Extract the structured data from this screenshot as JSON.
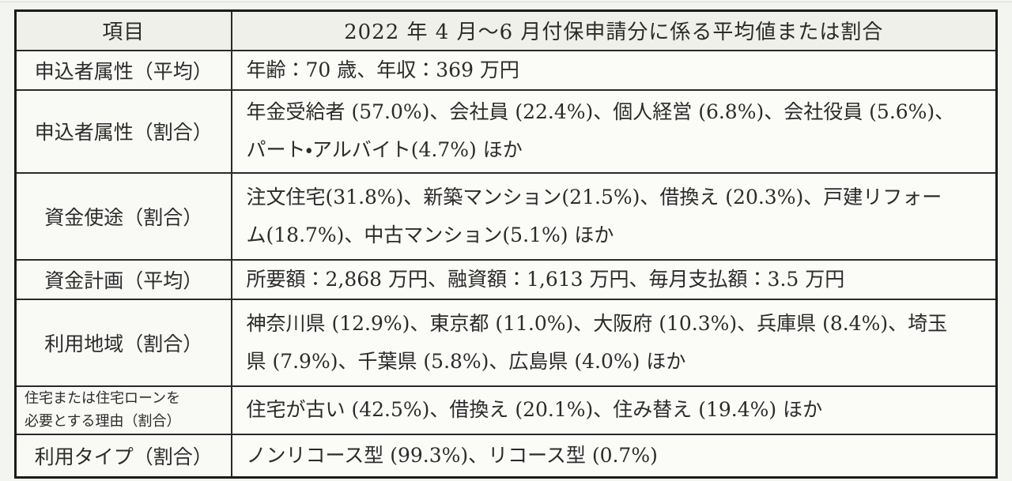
{
  "doc": {
    "header": {
      "item_label": "項目",
      "value_label": "2022 年 4 月～6 月付保申請分に係る平均値または割合"
    },
    "rows": [
      {
        "label": "申込者属性（平均）",
        "value": "年齢：70 歳、年収：369 万円"
      },
      {
        "label": "申込者属性（割合）",
        "value": "年金受給者 (57.0%)、会社員 (22.4%)、個人経営 (6.8%)、会社役員 (5.6%)、\nパート・アルバイト(4.7%) ほか"
      },
      {
        "label": "資金使途（割合）",
        "value": "注文住宅(31.8%)、新築マンション(21.5%)、借換え (20.3%)、戸建リフォー\nム(18.7%)、中古マンション(5.1%) ほか"
      },
      {
        "label": "資金計画（平均）",
        "value": "所要額：2,868 万円、融資額：1,613 万円、毎月支払額：3.5 万円"
      },
      {
        "label": "利用地域（割合）",
        "value": "神奈川県 (12.9%)、東京都 (11.0%)、大阪府 (10.3%)、兵庫県 (8.4%)、埼玉\n県 (7.9%)、千葉県 (5.8%)、広島県 (4.0%) ほか"
      },
      {
        "label": "住宅または住宅ローンを\n必要とする理由（割合）",
        "value": "住宅が古い (42.5%)、借換え (20.1%)、住み替え (19.4%) ほか"
      },
      {
        "label": "利用タイプ（割合）",
        "value": "ノンリコース型 (99.3%)、リコース型 (0.7%)"
      }
    ]
  }
}
